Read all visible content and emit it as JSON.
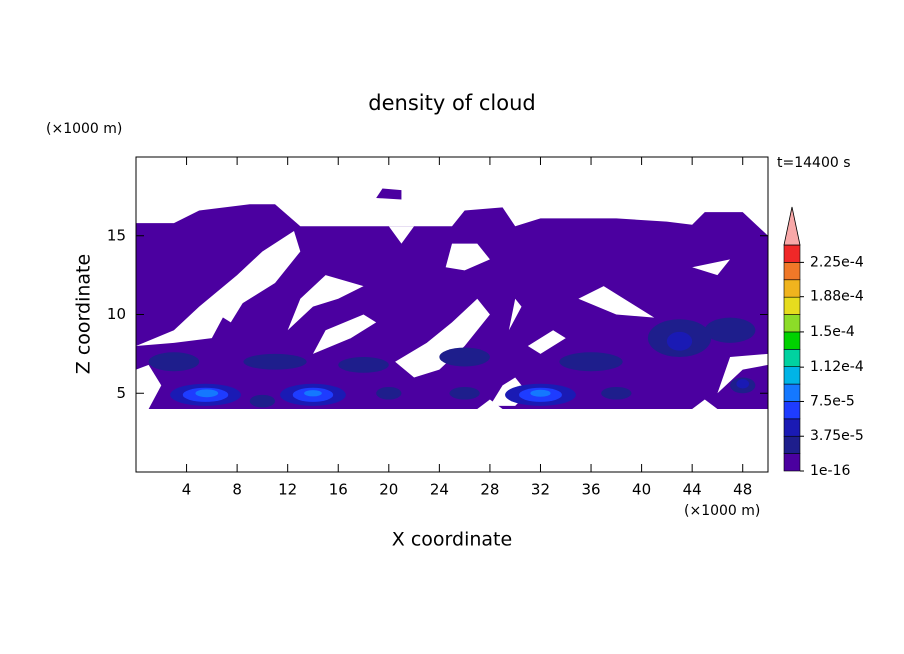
{
  "chart_data": {
    "type": "contour",
    "title": "density of cloud",
    "time_label": "t=14400 s",
    "x_label": "X coordinate",
    "y_label": "Z coordinate",
    "x_unit": "(×1000 m)",
    "y_unit": "(×1000 m)",
    "xlim": [
      0,
      50
    ],
    "ylim": [
      0,
      20
    ],
    "xticks": [
      4,
      8,
      12,
      16,
      20,
      24,
      28,
      32,
      36,
      40,
      44,
      48
    ],
    "yticks": [
      5,
      10,
      15
    ],
    "colorbar": {
      "clim": [
        0,
        0.00024375
      ],
      "colors": [
        "#4b00a0",
        "#1e1e8c",
        "#1a1ab4",
        "#1e3cff",
        "#1478ff",
        "#00b4e6",
        "#00d2a0",
        "#00d200",
        "#8cdc28",
        "#e6dc1e",
        "#f0b41e",
        "#f07828",
        "#f02828"
      ],
      "extend_color": "#f8a8a8",
      "ticks": [
        1e-16,
        {
          "value": 3.75e-05,
          "label": "3.75e-5"
        },
        {
          "value": 7.5e-05,
          "label": "7.5e-5"
        },
        {
          "value": 0.000112,
          "label": "1.12e-4"
        },
        {
          "value": 0.00015,
          "label": "1.5e-4"
        },
        {
          "value": 0.000188,
          "label": "1.88e-4"
        },
        {
          "value": 0.000225,
          "label": "2.25e-4"
        }
      ]
    }
  }
}
